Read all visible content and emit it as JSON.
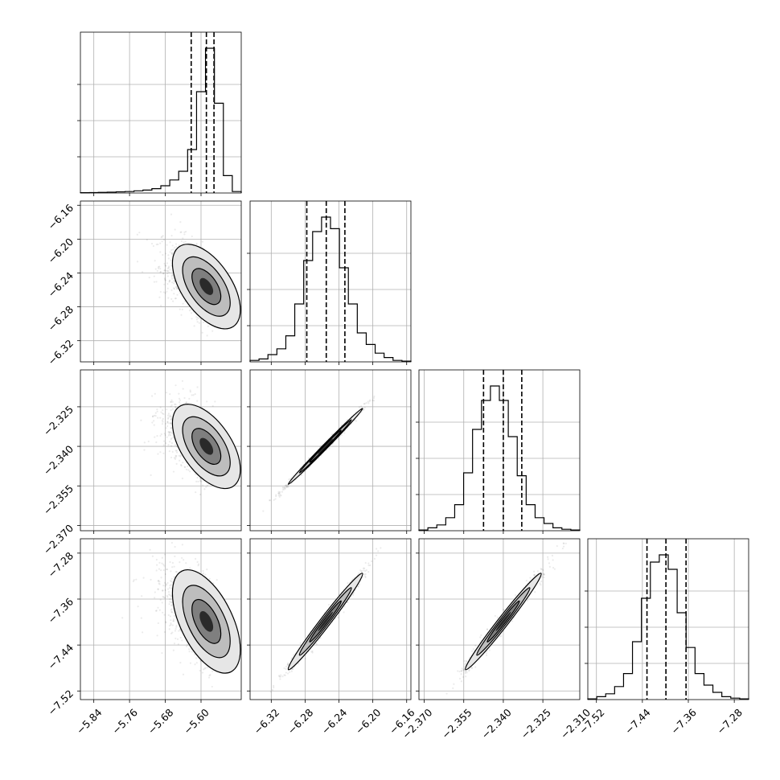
{
  "chart_data": {
    "type": "corner",
    "title": "",
    "grid": true,
    "parameters": [
      {
        "index": 0,
        "range": [
          -5.87,
          -5.51
        ],
        "ticks": [
          -5.84,
          -5.76,
          -5.68,
          -5.6
        ],
        "tick_labels": [
          "−5.84",
          "−5.76",
          "−5.68",
          "−5.60"
        ],
        "quantiles": [
          -5.622,
          -5.588,
          -5.571
        ],
        "hist_counts": [
          0.2,
          0.3,
          0.4,
          0.6,
          0.8,
          1.0,
          1.5,
          2.0,
          3.0,
          5.0,
          9.0,
          15.0,
          30.0,
          70.0,
          100.0,
          62.0,
          12.0,
          1.0
        ]
      },
      {
        "index": 1,
        "range": [
          -6.345,
          -6.155
        ],
        "ticks": [
          -6.32,
          -6.28,
          -6.24,
          -6.2,
          -6.16
        ],
        "tick_labels": [
          "−6.32",
          "−6.28",
          "−6.24",
          "−6.20",
          "−6.16"
        ],
        "quantiles": [
          -6.278,
          -6.255,
          -6.233
        ],
        "hist_counts": [
          1,
          2,
          5,
          9,
          18,
          40,
          70,
          90,
          100,
          92,
          65,
          40,
          20,
          12,
          6,
          3,
          1,
          0.5
        ]
      },
      {
        "index": 2,
        "range": [
          -2.372,
          -2.311
        ],
        "ticks": [
          -2.37,
          -2.355,
          -2.34,
          -2.325,
          -2.31
        ],
        "tick_labels": [
          "−2.370",
          "−2.355",
          "−2.340",
          "−2.325",
          "−2.310"
        ],
        "quantiles": [
          -2.3475,
          -2.34,
          -2.333
        ],
        "hist_counts": [
          0.5,
          2,
          4,
          9,
          18,
          40,
          70,
          90,
          100,
          90,
          65,
          38,
          18,
          9,
          5,
          2,
          1,
          0.5
        ]
      },
      {
        "index": 3,
        "range": [
          -7.535,
          -7.255
        ],
        "ticks": [
          -7.52,
          -7.44,
          -7.36,
          -7.28
        ],
        "tick_labels": [
          "−7.52",
          "−7.44",
          "−7.36",
          "−7.28"
        ],
        "quantiles": [
          -7.432,
          -7.399,
          -7.364
        ],
        "hist_counts": [
          0.5,
          2,
          4,
          9,
          18,
          40,
          70,
          95,
          100,
          90,
          60,
          36,
          18,
          10,
          5,
          2,
          1,
          0.5
        ]
      }
    ],
    "pairs": [
      {
        "row": 1,
        "col": 0,
        "mean": [
          -5.588,
          -6.256
        ],
        "sd": [
          0.038,
          0.025
        ],
        "rho": -0.55,
        "curve": 0.017
      },
      {
        "row": 2,
        "col": 0,
        "mean": [
          -5.588,
          -2.34
        ],
        "sd": [
          0.038,
          0.008
        ],
        "rho": -0.55,
        "curve": 0.0055
      },
      {
        "row": 2,
        "col": 1,
        "mean": [
          -6.256,
          -2.34
        ],
        "sd": [
          0.022,
          0.0072
        ],
        "rho": 0.996,
        "curve": 0
      },
      {
        "row": 3,
        "col": 0,
        "mean": [
          -5.588,
          -7.399
        ],
        "sd": [
          0.038,
          0.045
        ],
        "rho": -0.55,
        "curve": 0.031
      },
      {
        "row": 3,
        "col": 1,
        "mean": [
          -6.256,
          -7.399
        ],
        "sd": [
          0.022,
          0.042
        ],
        "rho": 0.985,
        "curve": 0
      },
      {
        "row": 3,
        "col": 2,
        "mean": [
          -2.34,
          -7.399
        ],
        "sd": [
          0.0072,
          0.042
        ],
        "rho": 0.985,
        "curve": 0
      }
    ]
  }
}
